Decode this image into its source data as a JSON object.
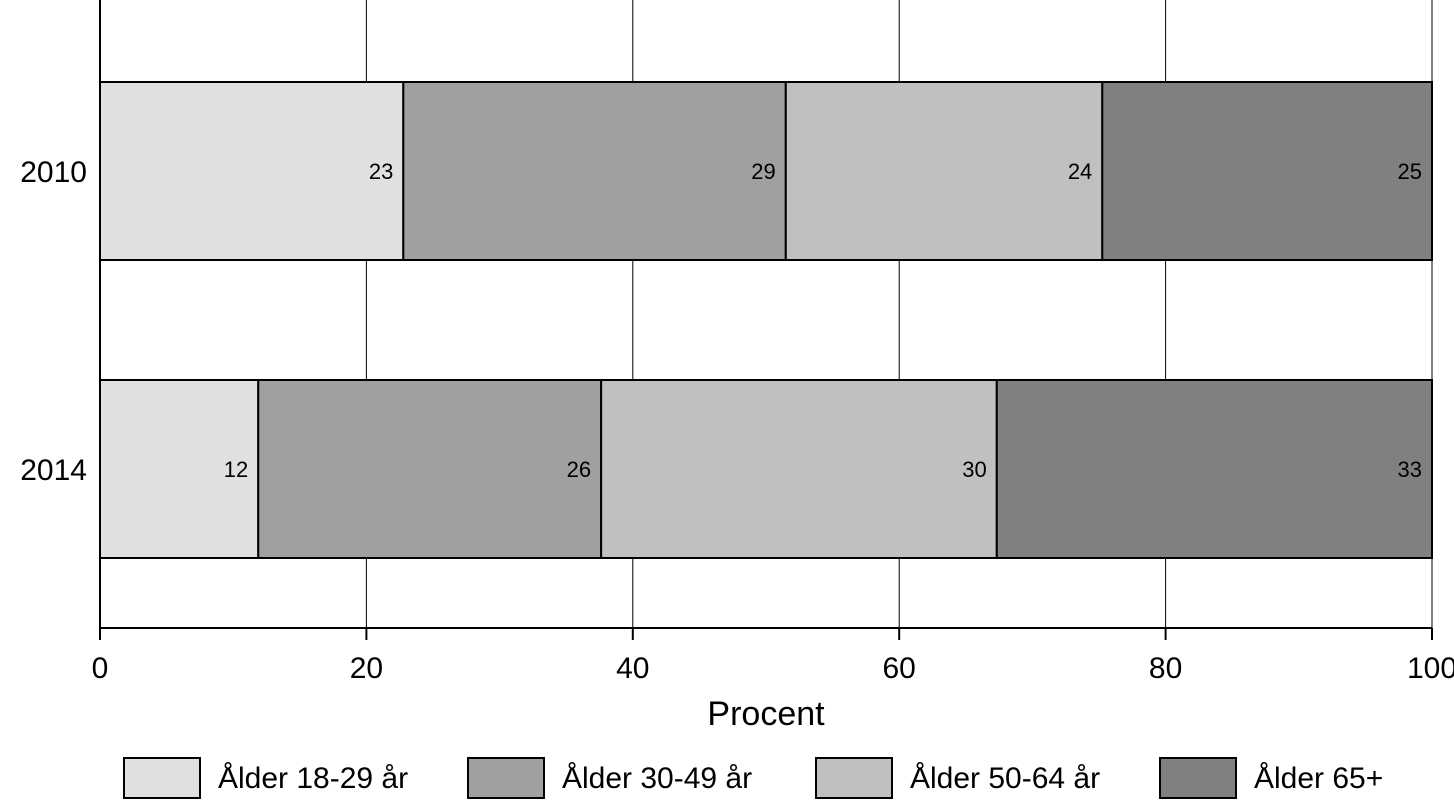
{
  "chart_data": {
    "type": "bar",
    "orientation": "horizontal",
    "stacked": true,
    "categories": [
      "2010",
      "2014"
    ],
    "series": [
      {
        "name": "Ålder 18-29 år",
        "values": [
          23,
          12
        ],
        "color": "#e0e0e0"
      },
      {
        "name": "Ålder 30-49 år",
        "values": [
          29,
          26
        ],
        "color": "#a0a0a0"
      },
      {
        "name": "Ålder 50-64 år",
        "values": [
          24,
          30
        ],
        "color": "#c0c0c0"
      },
      {
        "name": "Ålder 65+",
        "values": [
          25,
          33
        ],
        "color": "#808080"
      }
    ],
    "data_labels": [
      [
        "23",
        "12"
      ],
      [
        "29",
        "26"
      ],
      [
        "24",
        "30"
      ],
      [
        "25",
        "33"
      ]
    ],
    "xlabel": "Procent",
    "ylabel": "",
    "xlim": [
      0,
      100
    ],
    "xticks": [
      "0",
      "20",
      "40",
      "60",
      "80",
      "100"
    ],
    "grid": "vertical",
    "legend_position": "bottom"
  }
}
